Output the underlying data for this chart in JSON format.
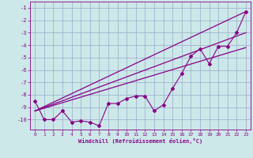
{
  "x_data": [
    0,
    1,
    2,
    3,
    4,
    5,
    6,
    7,
    8,
    9,
    10,
    11,
    12,
    13,
    14,
    15,
    16,
    17,
    18,
    19,
    20,
    21,
    22,
    23
  ],
  "y_data": [
    -8.5,
    -10.0,
    -10.0,
    -9.3,
    -10.2,
    -10.1,
    -10.2,
    -10.5,
    -8.7,
    -8.7,
    -8.3,
    -8.1,
    -8.1,
    -9.3,
    -8.8,
    -7.5,
    -6.3,
    -4.9,
    -4.3,
    -5.5,
    -4.1,
    -4.1,
    -3.0,
    -1.3
  ],
  "line_color": "#880088",
  "marker": "D",
  "marker_size": 2,
  "xlim": [
    -0.5,
    23.5
  ],
  "ylim": [
    -10.8,
    -0.5
  ],
  "yticks": [
    -10,
    -9,
    -8,
    -7,
    -6,
    -5,
    -4,
    -3,
    -2,
    -1
  ],
  "xticks": [
    0,
    1,
    2,
    3,
    4,
    5,
    6,
    7,
    8,
    9,
    10,
    11,
    12,
    13,
    14,
    15,
    16,
    17,
    18,
    19,
    20,
    21,
    22,
    23
  ],
  "xlabel": "Windchill (Refroidissement éolien,°C)",
  "background_color": "#cce8e8",
  "grid_color": "#99aacc",
  "reg_line1_x": [
    0,
    23
  ],
  "reg_line1_y": [
    -9.3,
    -1.3
  ],
  "reg_line2_x": [
    0,
    23
  ],
  "reg_line2_y": [
    -9.3,
    -3.0
  ],
  "reg_line3_x": [
    0,
    23
  ],
  "reg_line3_y": [
    -9.3,
    -4.2
  ]
}
